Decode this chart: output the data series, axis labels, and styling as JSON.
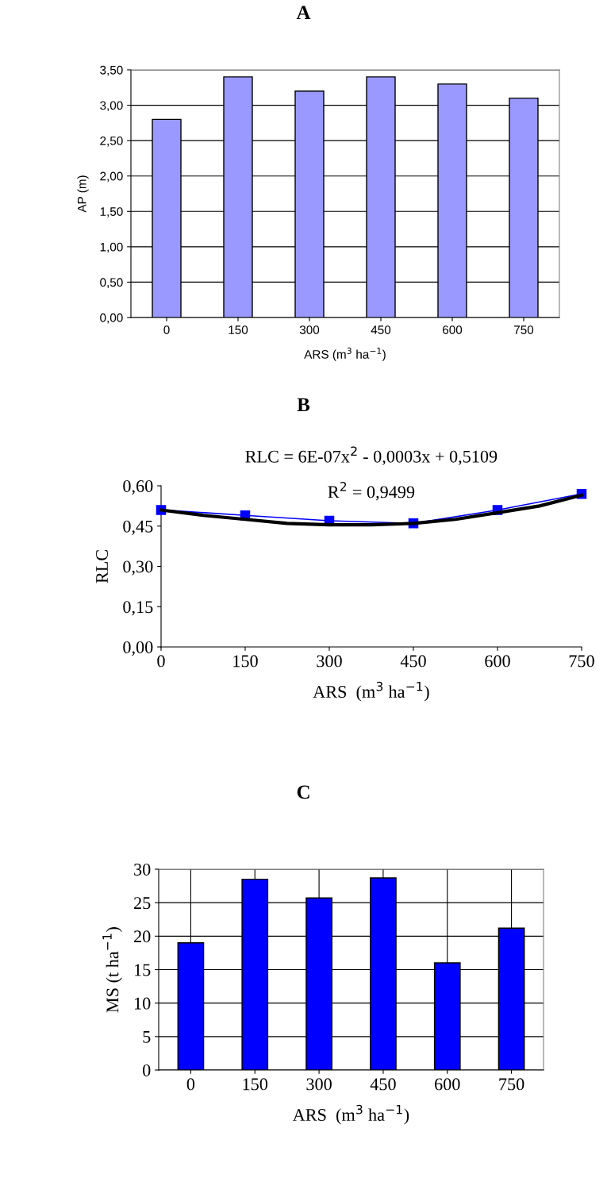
{
  "chart_data": [
    {
      "type": "bar",
      "title": "A",
      "xlabel": "ARS (m$^{3}$ ha$^{−1}$)",
      "ylabel": "AP (m)",
      "categories": [
        "0",
        "150",
        "300",
        "450",
        "600",
        "750"
      ],
      "values": [
        2.8,
        3.4,
        3.2,
        3.4,
        3.3,
        3.1
      ],
      "color": "#9999ff",
      "ylim": [
        0,
        3.5
      ],
      "yticks": [
        {
          "value": 0,
          "label": "0,00"
        },
        {
          "value": 0.5,
          "label": "0,50"
        },
        {
          "value": 1,
          "label": "1,00"
        },
        {
          "value": 1.5,
          "label": "1,50"
        },
        {
          "value": 2,
          "label": "2,00"
        },
        {
          "value": 2.5,
          "label": "2,50"
        },
        {
          "value": 3,
          "label": "3,00"
        },
        {
          "value": 3.5,
          "label": "3,50"
        }
      ],
      "grid": "y"
    },
    {
      "type": "line",
      "title": "B",
      "xlabel": "ARS  (m$^{3}$ ha$^{−1}$)",
      "ylabel": "RLC",
      "annotations": [
        "RLC = 6E-07x$^{2}$ - 0,0003x + 0,5109",
        "R$^{2}$ = 0,9499"
      ],
      "x": [
        0,
        150,
        300,
        450,
        600,
        750
      ],
      "series": [
        {
          "color": "#0000ff",
          "values": [
            0.51,
            0.49,
            0.47,
            0.46,
            0.51,
            0.57
          ],
          "marker": "square"
        },
        {
          "color": "#000000",
          "x": [
            0,
            75,
            150,
            225,
            300,
            375,
            450,
            525,
            600,
            675,
            750
          ],
          "values": [
            0.51,
            0.49,
            0.475,
            0.46,
            0.455,
            0.455,
            0.46,
            0.475,
            0.5,
            0.525,
            0.565
          ],
          "marker": "none"
        }
      ],
      "xlim": [
        0,
        750
      ],
      "xticks": [
        0,
        150,
        300,
        450,
        600,
        750
      ],
      "ylim": [
        0,
        0.6
      ],
      "yticks": [
        {
          "value": 0,
          "label": "0,00"
        },
        {
          "value": 0.15,
          "label": "0,15"
        },
        {
          "value": 0.3,
          "label": "0,30"
        },
        {
          "value": 0.45,
          "label": "0,45"
        },
        {
          "value": 0.6,
          "label": "0,60"
        }
      ],
      "grid": false
    },
    {
      "type": "bar",
      "title": "C",
      "xlabel": "ARS  (m$^{3}$ ha$^{−1}$)",
      "ylabel": "MS (t ha$^{−1}$)",
      "categories": [
        "0",
        "150",
        "300",
        "450",
        "600",
        "750"
      ],
      "values": [
        19.0,
        28.5,
        25.7,
        28.7,
        16.0,
        21.2
      ],
      "color": "#0000ff",
      "ylim": [
        0,
        30
      ],
      "yticks": [
        0,
        5,
        10,
        15,
        20,
        25,
        30
      ],
      "grid": true
    }
  ]
}
